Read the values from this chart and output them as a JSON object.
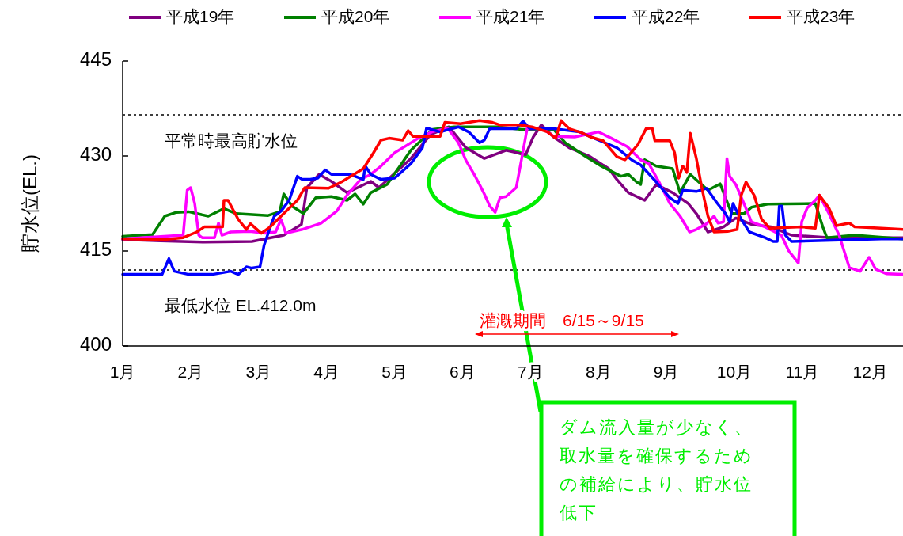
{
  "chart_data": {
    "type": "line",
    "ylabel": "貯水位(EL.)",
    "xlim": [
      1,
      12.48
    ],
    "xticks": [
      {
        "value": 1,
        "label": "1月"
      },
      {
        "value": 2,
        "label": "2月"
      },
      {
        "value": 3,
        "label": "3月"
      },
      {
        "value": 4,
        "label": "4月"
      },
      {
        "value": 5,
        "label": "5月"
      },
      {
        "value": 6,
        "label": "6月"
      },
      {
        "value": 7,
        "label": "7月"
      },
      {
        "value": 8,
        "label": "8月"
      },
      {
        "value": 9,
        "label": "9月"
      },
      {
        "value": 10,
        "label": "10月"
      },
      {
        "value": 11,
        "label": "11月"
      },
      {
        "value": 12,
        "label": "12月"
      }
    ],
    "ylim": [
      400,
      445
    ],
    "yticks": [
      400,
      415,
      430,
      445
    ],
    "grid": false,
    "legend": "top",
    "marker": "none",
    "line_style": "solid",
    "series": [
      {
        "name": "平成19年",
        "color": "#800080",
        "x": [
          1.0,
          1.56,
          2.2,
          2.9,
          3.37,
          3.63,
          3.71,
          3.89,
          4.07,
          4.3,
          4.65,
          4.77,
          5.24,
          5.53,
          5.8,
          6.05,
          6.32,
          6.64,
          6.93,
          7.04,
          7.16,
          7.34,
          7.57,
          7.86,
          8.15,
          8.27,
          8.44,
          8.68,
          8.85,
          9.09,
          9.32,
          9.44,
          9.61,
          9.84,
          10.02,
          10.25,
          10.54,
          10.84,
          11.42,
          12.48
        ],
        "values": [
          416.8,
          416.6,
          416.4,
          416.5,
          417.5,
          419.2,
          425.0,
          427.1,
          426.0,
          424.2,
          426.0,
          425.0,
          429.6,
          433.4,
          434.6,
          431.3,
          429.6,
          430.9,
          430.2,
          433.0,
          434.9,
          433.0,
          431.3,
          430.0,
          428.0,
          426.3,
          424.2,
          423.0,
          425.5,
          424.2,
          422.5,
          420.9,
          418.0,
          418.8,
          420.2,
          419.2,
          418.8,
          417.5,
          417.1,
          417.1
        ]
      },
      {
        "name": "平成20年",
        "color": "#008000",
        "x": [
          1.0,
          1.44,
          1.62,
          1.79,
          1.97,
          2.26,
          2.49,
          2.67,
          3.14,
          3.31,
          3.37,
          3.49,
          3.66,
          3.84,
          4.07,
          4.3,
          4.42,
          4.54,
          4.65,
          4.89,
          5.24,
          5.56,
          5.88,
          6.52,
          6.87,
          7.34,
          7.51,
          7.8,
          8.04,
          8.33,
          8.44,
          8.56,
          8.62,
          8.68,
          8.85,
          9.09,
          9.2,
          9.35,
          9.61,
          9.79,
          9.84,
          9.96,
          10.14,
          10.25,
          10.49,
          11.19,
          11.3,
          11.36,
          11.77,
          12.48
        ],
        "values": [
          417.3,
          417.6,
          420.5,
          421.1,
          421.2,
          420.5,
          421.7,
          420.9,
          420.6,
          421.2,
          424.0,
          422.1,
          420.9,
          423.4,
          423.6,
          423.0,
          424.0,
          422.4,
          424.2,
          425.5,
          430.9,
          434.2,
          434.6,
          434.6,
          434.2,
          434.2,
          432.1,
          430.0,
          428.4,
          426.8,
          427.1,
          425.9,
          425.5,
          429.4,
          428.4,
          428.0,
          424.2,
          427.1,
          424.6,
          425.6,
          424.2,
          420.9,
          420.9,
          421.9,
          422.4,
          422.5,
          418.8,
          417.1,
          417.5,
          416.9
        ]
      },
      {
        "name": "平成21年",
        "color": "#ff00ff",
        "x": [
          1.0,
          1.89,
          1.95,
          2.0,
          2.06,
          2.12,
          2.17,
          2.35,
          2.41,
          2.46,
          2.59,
          2.87,
          3.1,
          3.25,
          3.33,
          3.4,
          3.64,
          3.92,
          4.15,
          4.3,
          4.5,
          4.65,
          4.8,
          5.0,
          5.35,
          5.55,
          5.78,
          5.94,
          6.05,
          6.17,
          6.25,
          6.32,
          6.4,
          6.48,
          6.55,
          6.64,
          6.79,
          6.87,
          6.95,
          7.18,
          7.34,
          7.65,
          8.0,
          8.19,
          8.42,
          8.62,
          8.74,
          8.89,
          9.05,
          9.2,
          9.34,
          9.44,
          9.59,
          9.7,
          9.76,
          9.84,
          9.89,
          9.93,
          10.02,
          10.14,
          10.25,
          10.45,
          10.69,
          10.8,
          10.94,
          10.99,
          11.07,
          11.19,
          11.25,
          11.39,
          11.54,
          11.69,
          11.85,
          11.98,
          12.08,
          12.24,
          12.48
        ],
        "values": [
          416.9,
          417.5,
          424.6,
          425.0,
          422.5,
          417.5,
          417.1,
          417.1,
          419.4,
          417.5,
          418.0,
          418.1,
          417.8,
          418.0,
          420.0,
          417.8,
          418.4,
          419.4,
          421.3,
          423.8,
          426.3,
          427.1,
          428.4,
          430.5,
          432.8,
          433.8,
          434.4,
          432.1,
          429.3,
          427.1,
          425.5,
          424.0,
          422.1,
          421.1,
          423.4,
          423.6,
          425.0,
          429.6,
          434.3,
          434.3,
          433.1,
          433.0,
          433.8,
          432.8,
          431.5,
          429.4,
          428.8,
          425.9,
          422.5,
          420.5,
          418.0,
          418.4,
          419.3,
          420.5,
          419.4,
          419.6,
          429.6,
          426.8,
          425.5,
          422.5,
          419.6,
          418.8,
          417.5,
          415.0,
          413.1,
          419.6,
          421.8,
          423.0,
          423.8,
          420.9,
          417.5,
          412.4,
          411.8,
          414.0,
          412.1,
          411.4,
          411.3
        ]
      },
      {
        "name": "平成22年",
        "color": "#0000ff",
        "x": [
          1.0,
          1.58,
          1.68,
          1.76,
          1.97,
          2.2,
          2.32,
          2.59,
          2.7,
          2.82,
          2.9,
          3.02,
          3.08,
          3.16,
          3.23,
          3.33,
          3.45,
          3.57,
          3.64,
          3.76,
          3.87,
          3.98,
          4.07,
          4.15,
          4.34,
          4.54,
          4.57,
          4.65,
          4.8,
          5.0,
          5.24,
          5.41,
          5.47,
          5.67,
          5.94,
          6.09,
          6.25,
          6.32,
          6.4,
          6.79,
          6.89,
          6.99,
          7.34,
          7.72,
          8.0,
          8.27,
          8.5,
          8.62,
          8.85,
          9.05,
          9.17,
          9.24,
          9.44,
          9.59,
          9.75,
          9.87,
          9.93,
          9.98,
          10.05,
          10.22,
          10.45,
          10.57,
          10.63,
          10.66,
          10.7,
          10.75,
          10.84,
          12.16,
          12.48
        ],
        "values": [
          411.3,
          411.3,
          413.8,
          411.8,
          411.3,
          411.3,
          411.3,
          411.8,
          411.3,
          412.5,
          412.3,
          412.5,
          415.9,
          418.4,
          420.5,
          421.3,
          423.0,
          426.8,
          426.3,
          426.3,
          426.5,
          427.8,
          427.1,
          427.1,
          427.1,
          426.3,
          428.4,
          427.1,
          426.3,
          426.5,
          428.8,
          431.3,
          434.4,
          433.8,
          434.6,
          433.8,
          432.1,
          432.5,
          434.3,
          434.3,
          435.5,
          434.3,
          434.3,
          433.8,
          432.5,
          431.3,
          429.3,
          428.6,
          425.9,
          423.4,
          422.5,
          424.6,
          424.4,
          424.9,
          422.5,
          420.9,
          419.6,
          422.5,
          420.9,
          418.0,
          417.1,
          416.5,
          416.5,
          422.1,
          422.1,
          417.5,
          416.5,
          416.9,
          416.9
        ]
      },
      {
        "name": "平成23年",
        "color": "#ff0000",
        "x": [
          1.0,
          1.62,
          1.89,
          2.09,
          2.2,
          2.47,
          2.49,
          2.55,
          2.7,
          2.82,
          2.88,
          3.04,
          3.17,
          3.33,
          3.57,
          3.68,
          4.03,
          4.22,
          4.54,
          4.69,
          4.8,
          4.92,
          5.12,
          5.2,
          5.27,
          5.67,
          5.74,
          5.97,
          6.25,
          6.44,
          6.55,
          6.83,
          7.02,
          7.25,
          7.37,
          7.45,
          7.57,
          7.77,
          7.88,
          8.07,
          8.27,
          8.39,
          8.58,
          8.7,
          8.79,
          8.83,
          9.05,
          9.12,
          9.18,
          9.24,
          9.3,
          9.35,
          9.44,
          9.52,
          9.61,
          9.7,
          9.9,
          10.04,
          10.1,
          10.17,
          10.29,
          10.4,
          10.52,
          10.99,
          11.19,
          11.25,
          11.39,
          11.5,
          11.69,
          11.77,
          12.16,
          12.48
        ],
        "values": [
          416.9,
          416.8,
          417.1,
          418.0,
          418.8,
          418.8,
          423.0,
          423.0,
          420.0,
          418.4,
          419.3,
          417.8,
          418.8,
          420.5,
          423.0,
          425.0,
          424.9,
          425.9,
          428.0,
          430.5,
          432.5,
          432.8,
          432.5,
          434.0,
          433.1,
          433.1,
          435.3,
          435.1,
          435.6,
          435.3,
          434.9,
          434.9,
          434.6,
          433.8,
          432.8,
          435.6,
          434.3,
          433.6,
          433.0,
          432.4,
          429.9,
          429.4,
          431.8,
          434.3,
          434.4,
          432.4,
          432.4,
          430.5,
          426.5,
          428.4,
          427.4,
          433.6,
          429.6,
          425.0,
          420.5,
          418.0,
          418.1,
          418.4,
          423.8,
          425.9,
          423.8,
          420.0,
          418.6,
          418.8,
          418.6,
          423.8,
          421.8,
          419.0,
          419.4,
          418.8,
          418.6,
          418.4
        ]
      }
    ],
    "ref_lines": [
      {
        "axis": "y",
        "value": 436.5,
        "label": "平常時最高貯水位",
        "color": "#000000",
        "line_style": "dotted"
      },
      {
        "axis": "y",
        "value": 412,
        "label": "最低水位 EL.412.0m",
        "color": "#000000",
        "line_style": "dotted"
      }
    ],
    "annotations": [
      "灌漑期間　6/15～9/15",
      "ダム流入量が少なく、取水量を確保するための補給により、貯水位低下"
    ]
  }
}
